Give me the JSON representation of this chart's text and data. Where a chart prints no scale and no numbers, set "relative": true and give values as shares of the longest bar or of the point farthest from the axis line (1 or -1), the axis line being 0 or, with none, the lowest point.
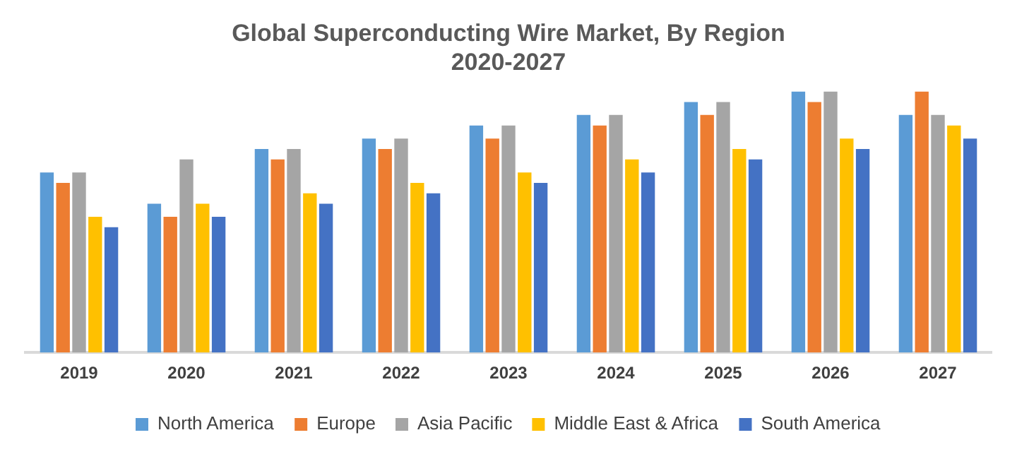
{
  "chart_data": {
    "type": "bar",
    "title": [
      "Global Superconducting Wire Market, By Region",
      "2020-2027"
    ],
    "relative": true,
    "legend": "bottom",
    "grid": false,
    "categories": [
      "2019",
      "2020",
      "2021",
      "2022",
      "2023",
      "2024",
      "2025",
      "2026",
      "2027"
    ],
    "series": [
      {
        "name": "North America",
        "color": "#5b9bd5",
        "values": [
          0.69,
          0.57,
          0.78,
          0.82,
          0.87,
          0.91,
          0.96,
          1,
          0.91
        ]
      },
      {
        "name": "Europe",
        "color": "#ed7d31",
        "values": [
          0.65,
          0.52,
          0.74,
          0.78,
          0.82,
          0.87,
          0.91,
          0.96,
          1
        ]
      },
      {
        "name": "Asia Pacific",
        "color": "#a5a5a5",
        "values": [
          0.69,
          0.74,
          0.78,
          0.82,
          0.87,
          0.91,
          0.96,
          1,
          0.91
        ]
      },
      {
        "name": "Middle East & Africa",
        "color": "#ffc000",
        "values": [
          0.52,
          0.57,
          0.61,
          0.65,
          0.69,
          0.74,
          0.78,
          0.82,
          0.87
        ]
      },
      {
        "name": "South America",
        "color": "#4472c4",
        "values": [
          0.48,
          0.52,
          0.57,
          0.61,
          0.65,
          0.69,
          0.74,
          0.78,
          0.82
        ]
      }
    ]
  }
}
